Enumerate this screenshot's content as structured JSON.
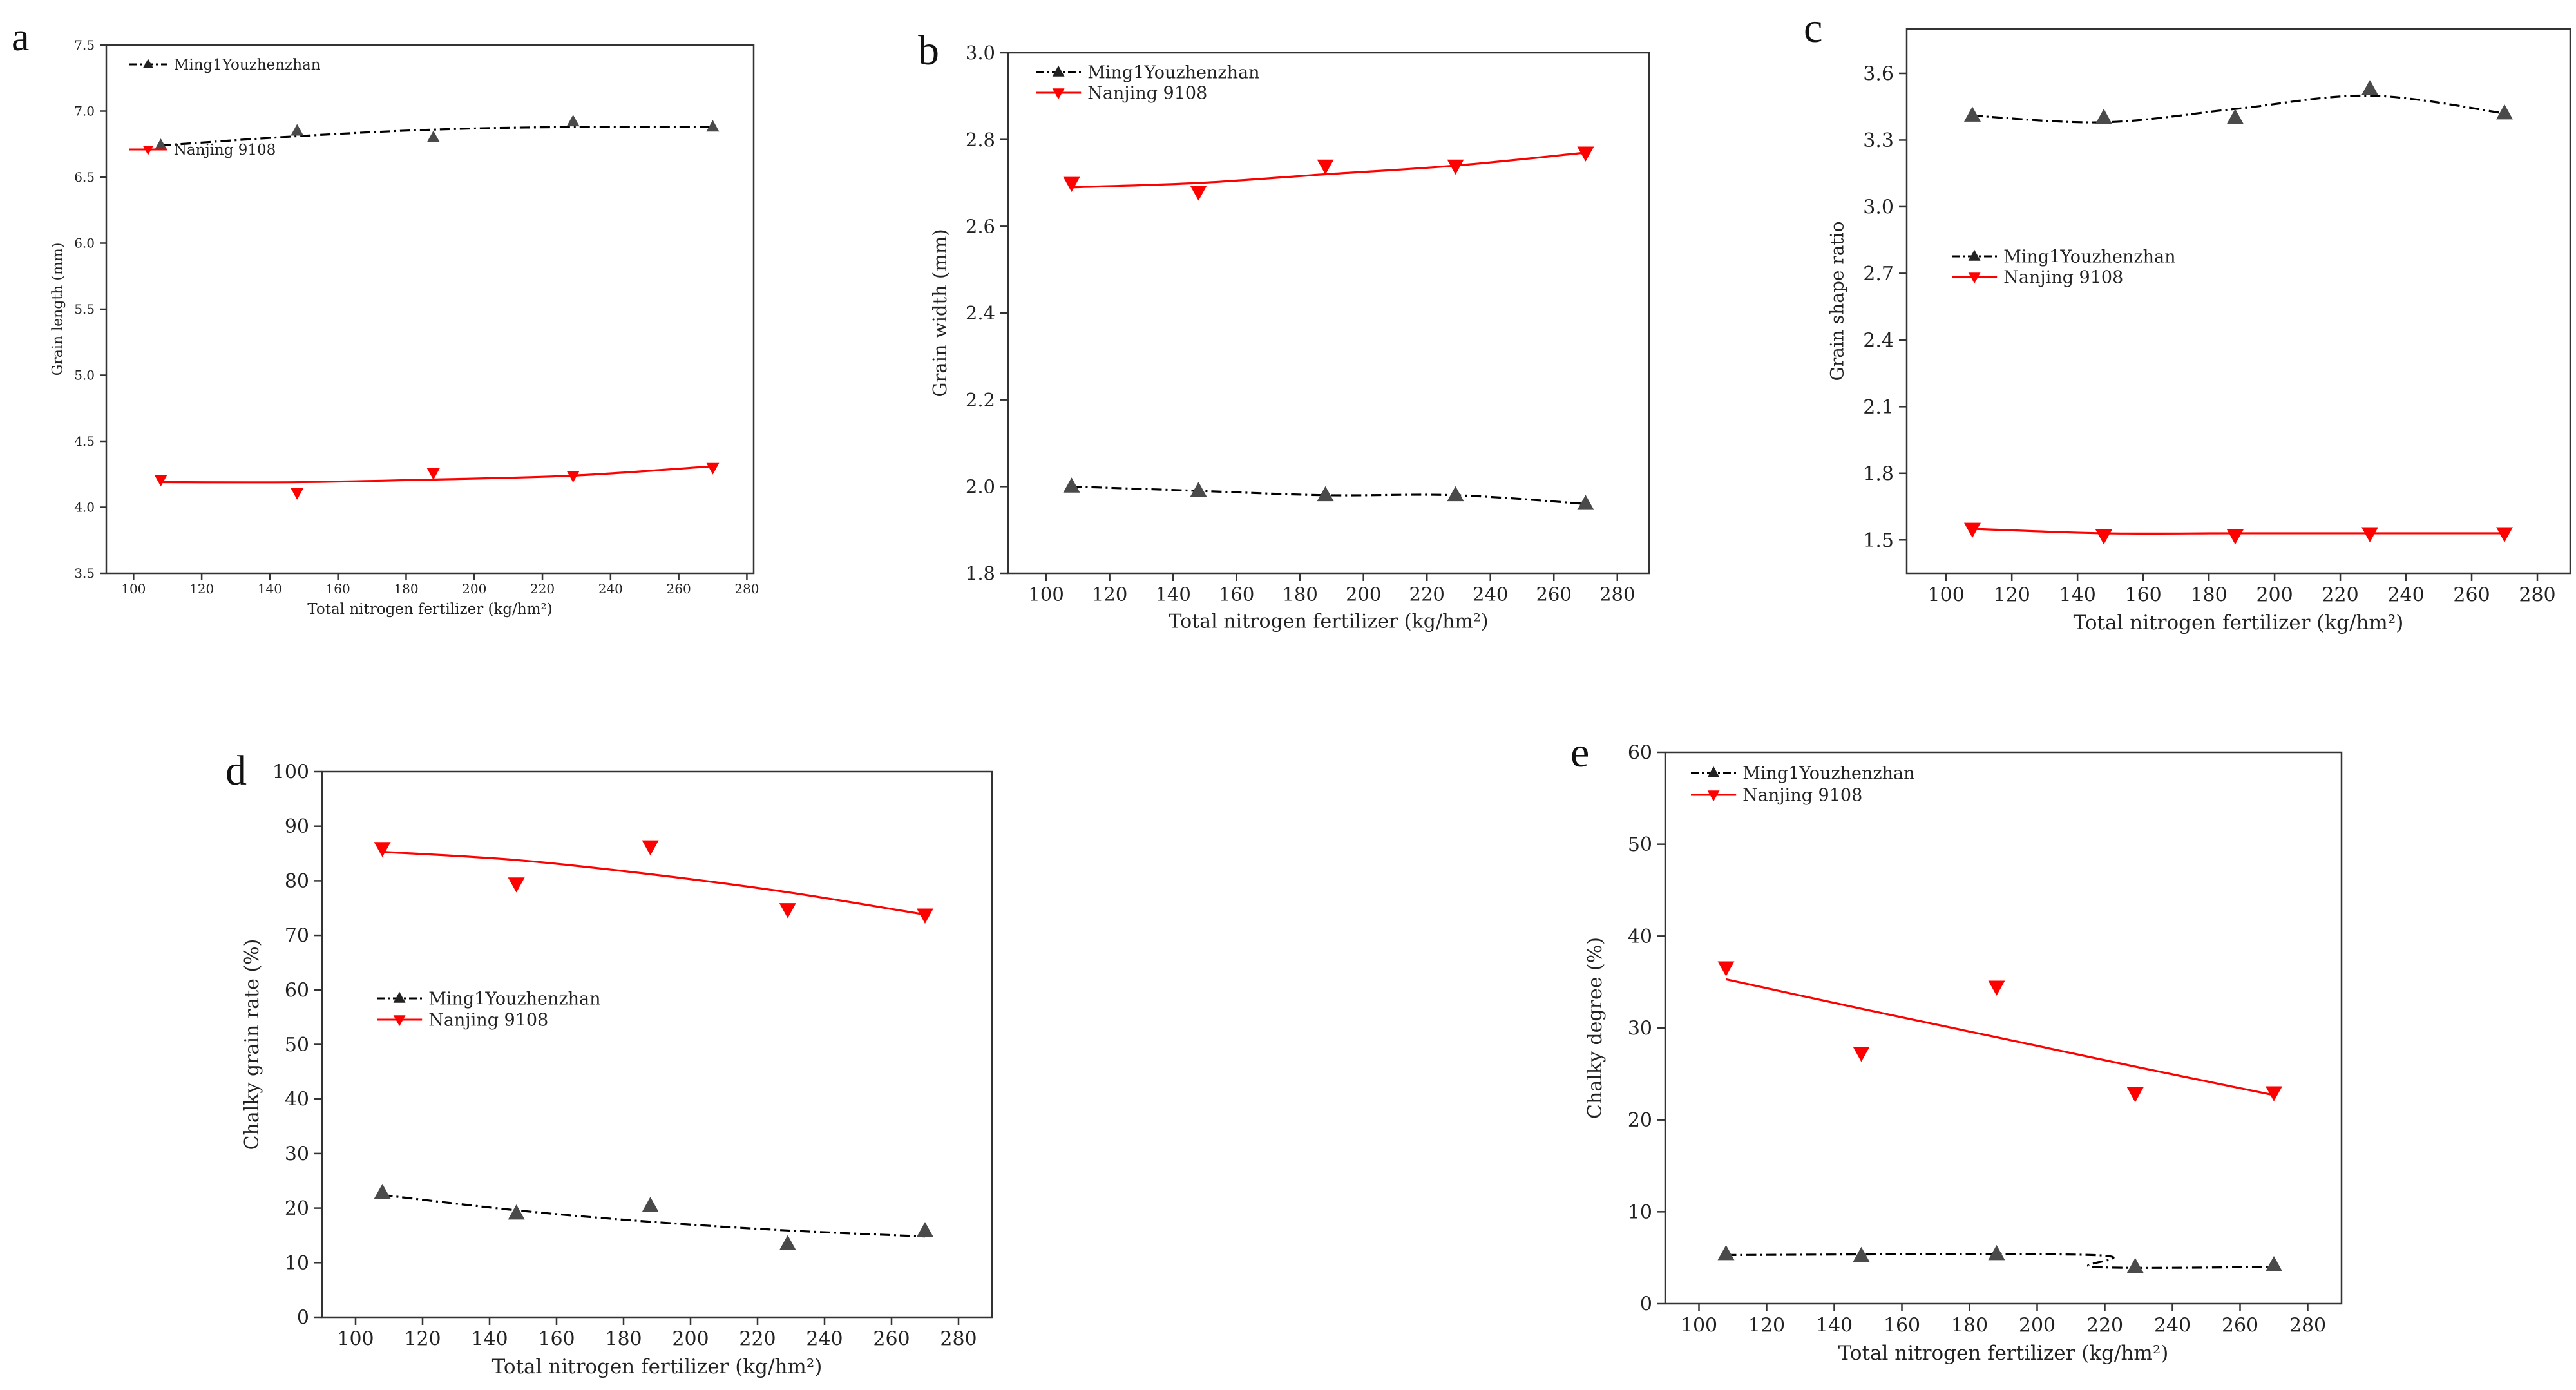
{
  "figure": {
    "panels_count": 5
  },
  "chart_data": [
    {
      "type": "line",
      "panel_label": "a",
      "xlabel": "Total nitrogen fertilizer (kg/hm²)",
      "ylabel": "Grain length (mm)",
      "xlim": [
        92,
        282
      ],
      "ylim": [
        3.5,
        7.5
      ],
      "xticks": [
        100,
        120,
        140,
        160,
        180,
        200,
        220,
        240,
        260,
        280
      ],
      "yticks": [
        3.5,
        4.0,
        4.5,
        5.0,
        5.5,
        6.0,
        6.5,
        7.0,
        7.5
      ],
      "ytick_decimals": 1,
      "legend": "top-left",
      "series": [
        {
          "name": "Ming1Youzhenzhan",
          "x": [
            108,
            148,
            188,
            229,
            270
          ],
          "y": [
            6.74,
            6.85,
            6.8,
            6.92,
            6.88
          ],
          "fit": [
            6.74,
            6.81,
            6.86,
            6.88,
            6.88
          ],
          "color": "#000000",
          "marker": "triangle-up",
          "line": "dashdot"
        },
        {
          "name": "Nanjing 9108",
          "x": [
            108,
            148,
            188,
            229,
            270
          ],
          "y": [
            4.21,
            4.11,
            4.26,
            4.24,
            4.3
          ],
          "fit": [
            4.19,
            4.19,
            4.21,
            4.24,
            4.31
          ],
          "color": "#ff0000",
          "marker": "triangle-down",
          "line": "solid"
        }
      ]
    },
    {
      "type": "line",
      "panel_label": "b",
      "xlabel": "Total nitrogen fertilizer (kg/hm²)",
      "ylabel": "Grain width (mm)",
      "xlim": [
        88,
        290
      ],
      "ylim": [
        1.8,
        3.0
      ],
      "xticks": [
        100,
        120,
        140,
        160,
        180,
        200,
        220,
        240,
        260,
        280
      ],
      "yticks": [
        1.8,
        2.0,
        2.2,
        2.4,
        2.6,
        2.8,
        3.0
      ],
      "ytick_decimals": 1,
      "legend": "top-left",
      "series": [
        {
          "name": "Ming1Youzhenzhan",
          "x": [
            108,
            148,
            188,
            229,
            270
          ],
          "y": [
            2.0,
            1.99,
            1.98,
            1.98,
            1.96
          ],
          "fit": [
            2.0,
            1.99,
            1.98,
            1.98,
            1.96
          ],
          "color": "#000000",
          "marker": "triangle-up",
          "line": "dashdot"
        },
        {
          "name": "Nanjing 9108",
          "x": [
            108,
            148,
            188,
            229,
            270
          ],
          "y": [
            2.7,
            2.68,
            2.74,
            2.74,
            2.77
          ],
          "fit": [
            2.69,
            2.7,
            2.72,
            2.74,
            2.77
          ],
          "color": "#ff0000",
          "marker": "triangle-down",
          "line": "solid"
        }
      ]
    },
    {
      "type": "line",
      "panel_label": "c",
      "xlabel": "Total nitrogen fertilizer (kg/hm²)",
      "ylabel": "Grain shape ratio",
      "xlim": [
        88,
        290
      ],
      "ylim": [
        1.35,
        3.8
      ],
      "xticks": [
        100,
        120,
        140,
        160,
        180,
        200,
        220,
        240,
        260,
        280
      ],
      "yticks": [
        1.5,
        1.8,
        2.1,
        2.4,
        2.7,
        3.0,
        3.3,
        3.6
      ],
      "ytick_decimals": 1,
      "legend": "middle-left",
      "series": [
        {
          "name": "Ming1Youzhenzhan",
          "x": [
            108,
            148,
            188,
            229,
            270
          ],
          "y": [
            3.41,
            3.4,
            3.4,
            3.53,
            3.42
          ],
          "fit": [
            3.41,
            3.38,
            3.44,
            3.5,
            3.42
          ],
          "color": "#000000",
          "marker": "triangle-up",
          "line": "dashdot"
        },
        {
          "name": "Nanjing 9108",
          "x": [
            108,
            148,
            188,
            229,
            270
          ],
          "y": [
            1.55,
            1.52,
            1.52,
            1.53,
            1.53
          ],
          "fit": [
            1.55,
            1.53,
            1.53,
            1.53,
            1.53
          ],
          "color": "#ff0000",
          "marker": "triangle-down",
          "line": "solid"
        }
      ]
    },
    {
      "type": "line",
      "panel_label": "d",
      "xlabel": "Total nitrogen fertilizer (kg/hm²)",
      "ylabel": "Chalky grain rate (%)",
      "xlim": [
        90,
        290
      ],
      "ylim": [
        0,
        100
      ],
      "xticks": [
        100,
        120,
        140,
        160,
        180,
        200,
        220,
        240,
        260,
        280
      ],
      "yticks": [
        0,
        10,
        20,
        30,
        40,
        50,
        60,
        70,
        80,
        90,
        100
      ],
      "ytick_decimals": 0,
      "legend": "middle-left",
      "series": [
        {
          "name": "Ming1Youzhenzhan",
          "x": [
            108,
            148,
            188,
            229,
            270
          ],
          "y": [
            22.8,
            19.0,
            20.4,
            13.4,
            15.8
          ],
          "fit": [
            22.4,
            19.6,
            17.5,
            15.9,
            14.8
          ],
          "color": "#000000",
          "marker": "triangle-up",
          "line": "dashdot"
        },
        {
          "name": "Nanjing 9108",
          "x": [
            108,
            148,
            188,
            229,
            270
          ],
          "y": [
            86.0,
            79.5,
            86.3,
            74.8,
            73.8
          ],
          "fit": [
            85.3,
            83.8,
            81.2,
            77.9,
            73.8
          ],
          "color": "#ff0000",
          "marker": "triangle-down",
          "line": "solid"
        }
      ]
    },
    {
      "type": "line",
      "panel_label": "e",
      "xlabel": "Total nitrogen fertilizer (kg/hm²)",
      "ylabel": "Chalky degree (%)",
      "xlim": [
        90,
        290
      ],
      "ylim": [
        0,
        60
      ],
      "xticks": [
        100,
        120,
        140,
        160,
        180,
        200,
        220,
        240,
        260,
        280
      ],
      "yticks": [
        0,
        10,
        20,
        30,
        40,
        50,
        60
      ],
      "ytick_decimals": 0,
      "legend": "top-left",
      "series": [
        {
          "name": "Ming1Youzhenzhan",
          "x": [
            108,
            148,
            188,
            229,
            270
          ],
          "y": [
            5.4,
            5.2,
            5.4,
            4.0,
            4.2
          ],
          "fit_x": [
            108,
            216,
            217,
            270
          ],
          "fit": [
            5.3,
            5.3,
            4.0,
            4.0
          ],
          "color": "#000000",
          "marker": "triangle-up",
          "line": "dashdot"
        },
        {
          "name": "Nanjing 9108",
          "x": [
            108,
            148,
            188,
            229,
            270
          ],
          "y": [
            36.6,
            27.3,
            34.5,
            22.9,
            23.0
          ],
          "fit": [
            35.3,
            32.1,
            29.0,
            25.8,
            22.7
          ],
          "color": "#ff0000",
          "marker": "triangle-down",
          "line": "solid"
        }
      ]
    }
  ]
}
